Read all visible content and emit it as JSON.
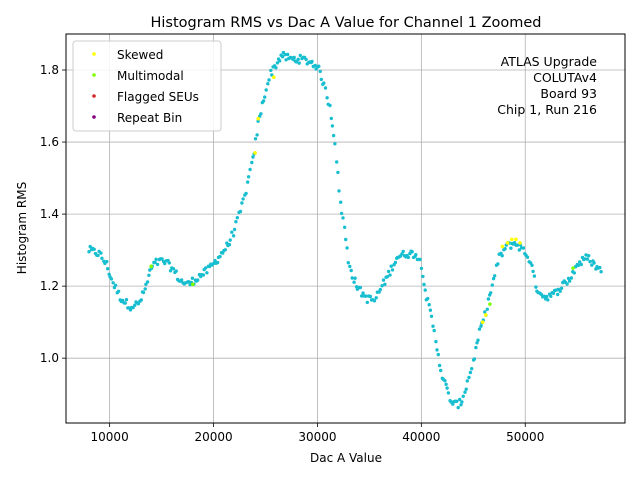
{
  "chart_data": {
    "type": "scatter",
    "title": "Histogram RMS vs Dac A Value for Channel 1 Zoomed",
    "xlabel": "Dac A Value",
    "ylabel": "Histogram RMS",
    "xlim": [
      5800,
      59600
    ],
    "ylim": [
      0.82,
      1.9
    ],
    "x_ticks": [
      10000,
      20000,
      30000,
      40000,
      50000
    ],
    "x_tick_labels": [
      "10000",
      "20000",
      "30000",
      "40000",
      "50000"
    ],
    "y_ticks": [
      1.0,
      1.2,
      1.4,
      1.6,
      1.8
    ],
    "y_tick_labels": [
      "1.0",
      "1.2",
      "1.4",
      "1.6",
      "1.8"
    ],
    "grid": true,
    "legend_position": "top-left",
    "legend": [
      {
        "label": "Skewed",
        "color": "#ffff00"
      },
      {
        "label": "Multimodal",
        "color": "#7fff00"
      },
      {
        "label": "Flagged SEUs",
        "color": "#d62728"
      },
      {
        "label": "Repeat Bin",
        "color": "#800080"
      }
    ],
    "annotation": [
      "ATLAS Upgrade",
      "COLUTAv4",
      "Board 93",
      "Chip 1, Run 216"
    ],
    "main_color": "#17becf",
    "curve": [
      [
        8000,
        1.3
      ],
      [
        9000,
        1.29
      ],
      [
        9700,
        1.26
      ],
      [
        10300,
        1.21
      ],
      [
        11000,
        1.17
      ],
      [
        11500,
        1.155
      ],
      [
        12000,
        1.145
      ],
      [
        12800,
        1.15
      ],
      [
        13400,
        1.19
      ],
      [
        14000,
        1.25
      ],
      [
        14500,
        1.265
      ],
      [
        15200,
        1.27
      ],
      [
        16000,
        1.25
      ],
      [
        16800,
        1.215
      ],
      [
        17600,
        1.205
      ],
      [
        18500,
        1.225
      ],
      [
        19500,
        1.245
      ],
      [
        20500,
        1.28
      ],
      [
        21500,
        1.32
      ],
      [
        22300,
        1.38
      ],
      [
        23000,
        1.45
      ],
      [
        23800,
        1.55
      ],
      [
        24300,
        1.65
      ],
      [
        24800,
        1.72
      ],
      [
        25500,
        1.79
      ],
      [
        26500,
        1.84
      ],
      [
        27500,
        1.83
      ],
      [
        28500,
        1.83
      ],
      [
        29500,
        1.82
      ],
      [
        30000,
        1.81
      ],
      [
        30500,
        1.77
      ],
      [
        31200,
        1.7
      ],
      [
        31700,
        1.6
      ],
      [
        32100,
        1.46
      ],
      [
        32600,
        1.36
      ],
      [
        33000,
        1.27
      ],
      [
        33500,
        1.22
      ],
      [
        34000,
        1.19
      ],
      [
        34800,
        1.165
      ],
      [
        35500,
        1.16
      ],
      [
        36200,
        1.2
      ],
      [
        37000,
        1.24
      ],
      [
        37600,
        1.28
      ],
      [
        38500,
        1.29
      ],
      [
        39500,
        1.29
      ],
      [
        40000,
        1.26
      ],
      [
        40500,
        1.17
      ],
      [
        41000,
        1.11
      ],
      [
        41500,
        1.03
      ],
      [
        42000,
        0.95
      ],
      [
        42500,
        0.91
      ],
      [
        43000,
        0.87
      ],
      [
        43800,
        0.875
      ],
      [
        44300,
        0.92
      ],
      [
        45000,
        0.99
      ],
      [
        45600,
        1.07
      ],
      [
        46200,
        1.13
      ],
      [
        46800,
        1.2
      ],
      [
        47500,
        1.28
      ],
      [
        48200,
        1.31
      ],
      [
        49000,
        1.32
      ],
      [
        49800,
        1.3
      ],
      [
        50500,
        1.27
      ],
      [
        51000,
        1.2
      ],
      [
        51800,
        1.17
      ],
      [
        52700,
        1.175
      ],
      [
        53500,
        1.2
      ],
      [
        54300,
        1.22
      ],
      [
        55000,
        1.26
      ],
      [
        56000,
        1.28
      ],
      [
        57300,
        1.24
      ]
    ],
    "skewed": [
      [
        24000,
        1.57
      ],
      [
        24300,
        1.665
      ],
      [
        25800,
        1.78
      ],
      [
        45900,
        1.1
      ],
      [
        46200,
        1.12
      ],
      [
        47800,
        1.31
      ],
      [
        48300,
        1.32
      ],
      [
        48700,
        1.33
      ],
      [
        49100,
        1.33
      ],
      [
        49500,
        1.32
      ]
    ],
    "multimodal": [
      [
        14000,
        1.255
      ],
      [
        18000,
        1.205
      ],
      [
        46600,
        1.15
      ],
      [
        54600,
        1.25
      ]
    ]
  }
}
